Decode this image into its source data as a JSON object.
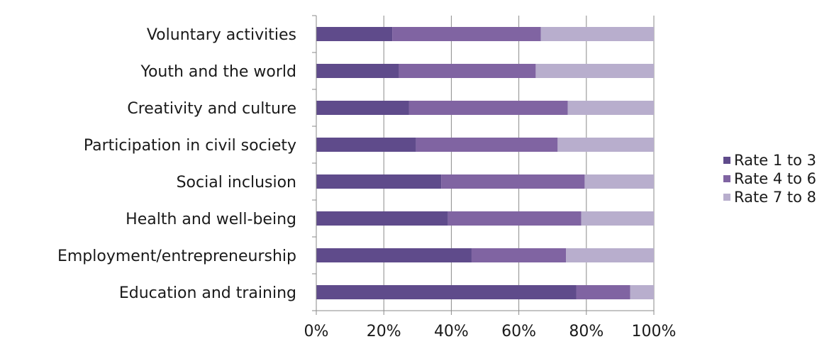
{
  "chart_data": {
    "type": "bar",
    "orientation": "horizontal",
    "stacked": true,
    "categories": [
      "Voluntary activities",
      "Youth and the world",
      "Creativity and culture",
      "Participation in civil society",
      "Social inclusion",
      "Health and well-being",
      "Employment/entrepreneurship",
      "Education and training"
    ],
    "series": [
      {
        "name": "Rate 1 to 3",
        "color": "#5f4b8b",
        "values": [
          22.5,
          24.5,
          27.5,
          29.5,
          37,
          39,
          46,
          77
        ]
      },
      {
        "name": "Rate 4 to 6",
        "color": "#8064a2",
        "values": [
          44,
          40.5,
          47,
          42,
          42.5,
          39.5,
          28,
          16
        ]
      },
      {
        "name": "Rate 7 to 8",
        "color": "#b8aecd",
        "values": [
          33.5,
          35,
          25.5,
          28.5,
          20.5,
          21.5,
          26,
          7
        ]
      }
    ],
    "xlim": [
      0,
      100
    ],
    "x_ticks": [
      "0%",
      "20%",
      "40%",
      "60%",
      "80%",
      "100%"
    ],
    "grid": "vertical",
    "legend_position": "right"
  }
}
